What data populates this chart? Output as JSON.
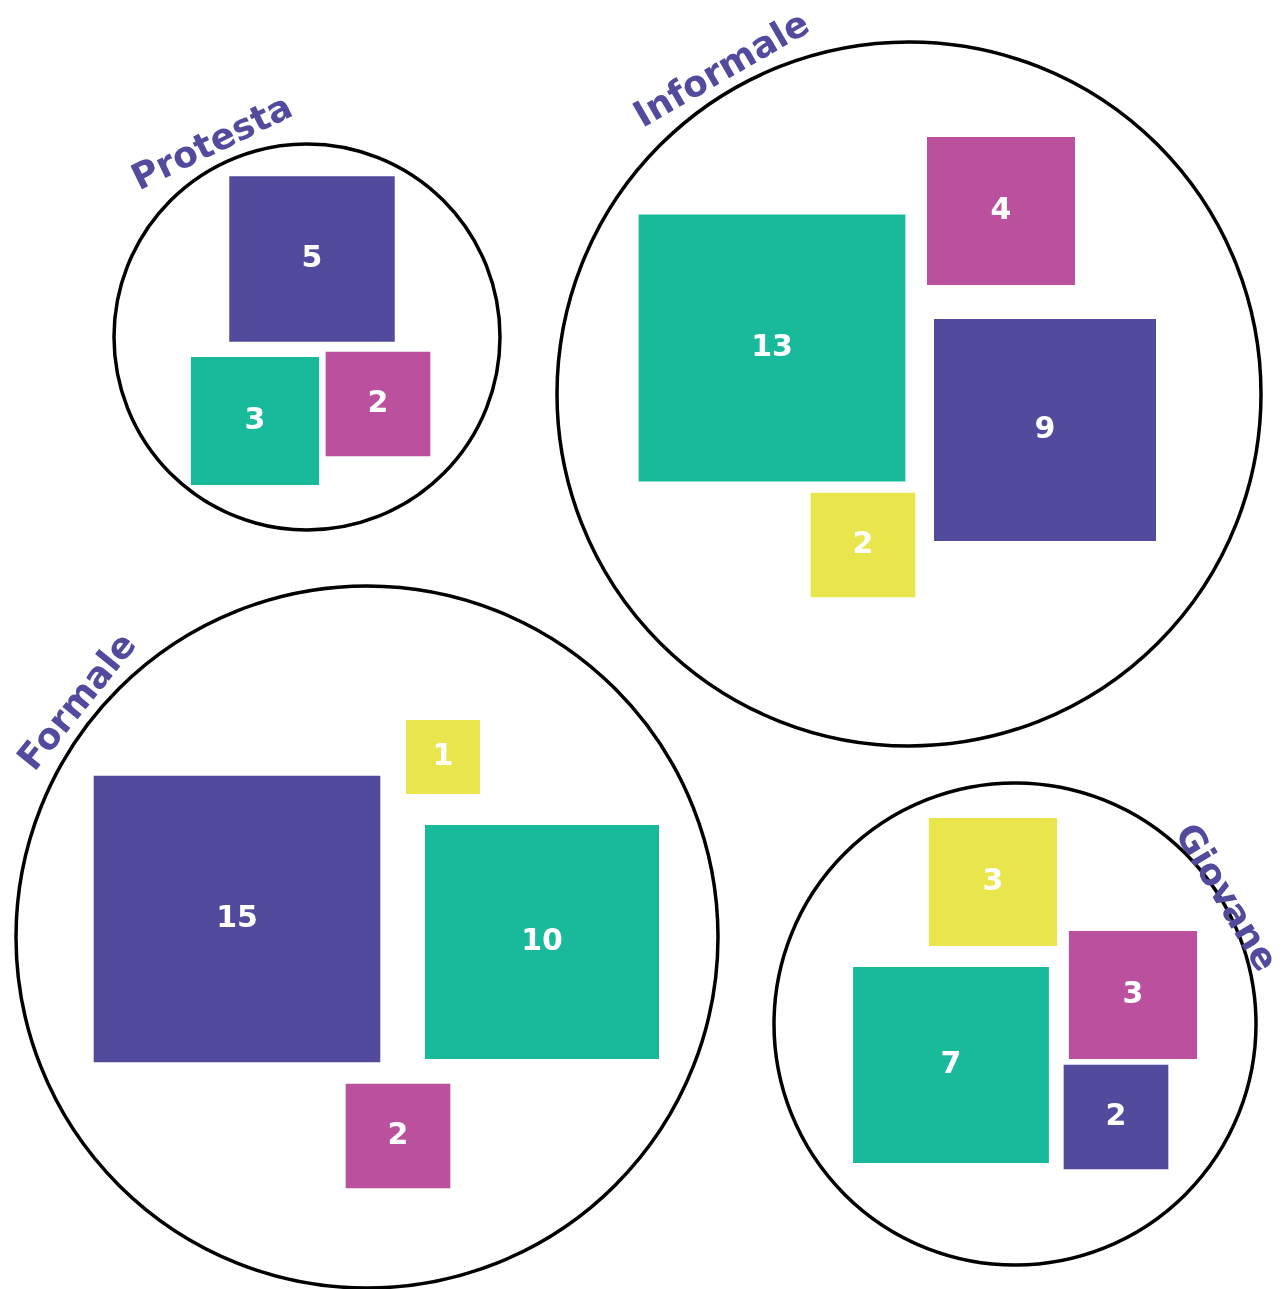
{
  "chart_data": {
    "type": "other",
    "categories": [
      "Protesta",
      "Informale",
      "Formale",
      "Giovane"
    ],
    "series": [
      {
        "color": "#514a9d",
        "values": [
          5,
          9,
          15,
          2
        ]
      },
      {
        "color": "#19b99c",
        "values": [
          3,
          13,
          10,
          7
        ]
      },
      {
        "color": "#bb519e",
        "values": [
          2,
          4,
          2,
          3
        ]
      },
      {
        "color": "#e8e54d",
        "values": [
          null,
          2,
          1,
          3
        ]
      }
    ],
    "data_labels": true
  }
}
